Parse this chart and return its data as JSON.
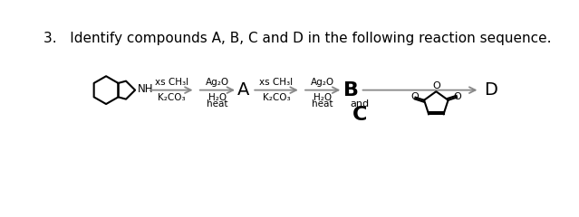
{
  "title": "3.   Identify compounds A, B, C and D in the following reaction sequence.",
  "title_fontsize": 11,
  "background_color": "#ffffff",
  "text_color": "#000000",
  "arrow_color": "#888888",
  "label_A": "A",
  "label_B": "B",
  "label_C": "C",
  "label_D": "D",
  "and_text": "and",
  "reagent_fontsize": 7.5,
  "label_fontsize": 14,
  "BC_fontsize": 16
}
